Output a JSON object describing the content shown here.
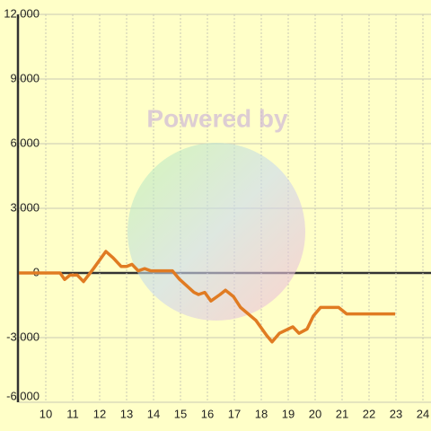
{
  "chart_data": {
    "type": "line",
    "watermark": "Powered by",
    "x": [
      9.0,
      10.53,
      10.7,
      10.9,
      11.17,
      11.4,
      11.77,
      12.23,
      12.5,
      12.8,
      13.0,
      13.2,
      13.43,
      13.67,
      13.9,
      14.7,
      14.97,
      15.5,
      15.67,
      15.9,
      16.13,
      16.47,
      16.67,
      16.97,
      17.23,
      17.8,
      18.2,
      18.4,
      18.67,
      19.17,
      19.4,
      19.7,
      19.93,
      20.2,
      20.87,
      21.17,
      22.97
    ],
    "series": [
      {
        "color": "#e07b22",
        "values": [
          0,
          0,
          -300,
          -100,
          -100,
          -400,
          200,
          1000,
          700,
          300,
          300,
          400,
          100,
          200,
          100,
          100,
          -300,
          -900,
          -1000,
          -900,
          -1300,
          -1000,
          -800,
          -1100,
          -1600,
          -2200,
          -2900,
          -3200,
          -2800,
          -2500,
          -2800,
          -2600,
          -2000,
          -1600,
          -1600,
          -1900,
          -1900
        ]
      }
    ],
    "xlim": [
      9,
      24.3
    ],
    "xticks": [
      10,
      11,
      12,
      13,
      14,
      15,
      16,
      17,
      18,
      19,
      20,
      21,
      22,
      23,
      24
    ],
    "ylim": [
      -6000,
      12000
    ],
    "yticks": [
      {
        "value": -6000,
        "label": "-6,000"
      },
      {
        "value": -3000,
        "label": "-3,000"
      },
      0,
      {
        "value": 3000,
        "label": "3,000"
      },
      {
        "value": 6000,
        "label": "6,000"
      },
      {
        "value": 9000,
        "label": "9,000"
      },
      {
        "value": 12000,
        "label": "12,000"
      }
    ],
    "grid": true
  }
}
